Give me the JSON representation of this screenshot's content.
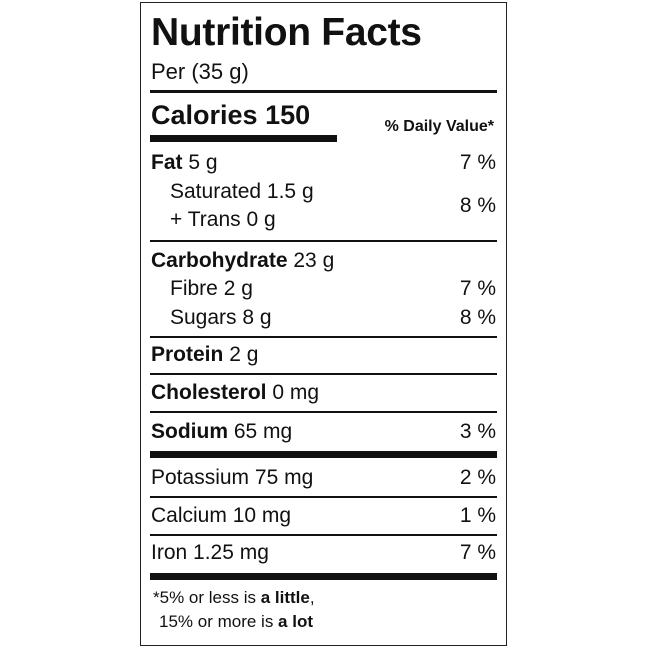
{
  "title": "Nutrition Facts",
  "serving": "Per (35 g)",
  "calories": {
    "label": "Calories",
    "value": "150"
  },
  "dv_header": "% Daily Value*",
  "nutrients": [
    {
      "name": "Fat",
      "amount": "5 g",
      "dv": "7 %"
    },
    {
      "name": "Saturated",
      "amount": "1.5 g"
    },
    {
      "name": "+ Trans",
      "amount": "0 g",
      "dv": "8 %"
    },
    {
      "name": "Carbohydrate",
      "amount": "23 g"
    },
    {
      "name": "Fibre",
      "amount": "2 g",
      "dv": "7 %"
    },
    {
      "name": "Sugars",
      "amount": "8 g",
      "dv": "8 %"
    },
    {
      "name": "Protein",
      "amount": "2 g"
    },
    {
      "name": "Cholesterol",
      "amount": "0 mg"
    },
    {
      "name": "Sodium",
      "amount": "65 mg",
      "dv": "3 %"
    },
    {
      "name": "Potassium",
      "amount": "75 mg",
      "dv": "2 %"
    },
    {
      "name": "Calcium",
      "amount": "10 mg",
      "dv": "1 %"
    },
    {
      "name": "Iron",
      "amount": "1.25 mg",
      "dv": "7 %"
    }
  ],
  "footnote": {
    "line1_pre": "*5% or less is ",
    "line1_bold": "a little",
    "line1_post": ",",
    "line2_pre": "15% or more is ",
    "line2_bold": "a lot"
  }
}
